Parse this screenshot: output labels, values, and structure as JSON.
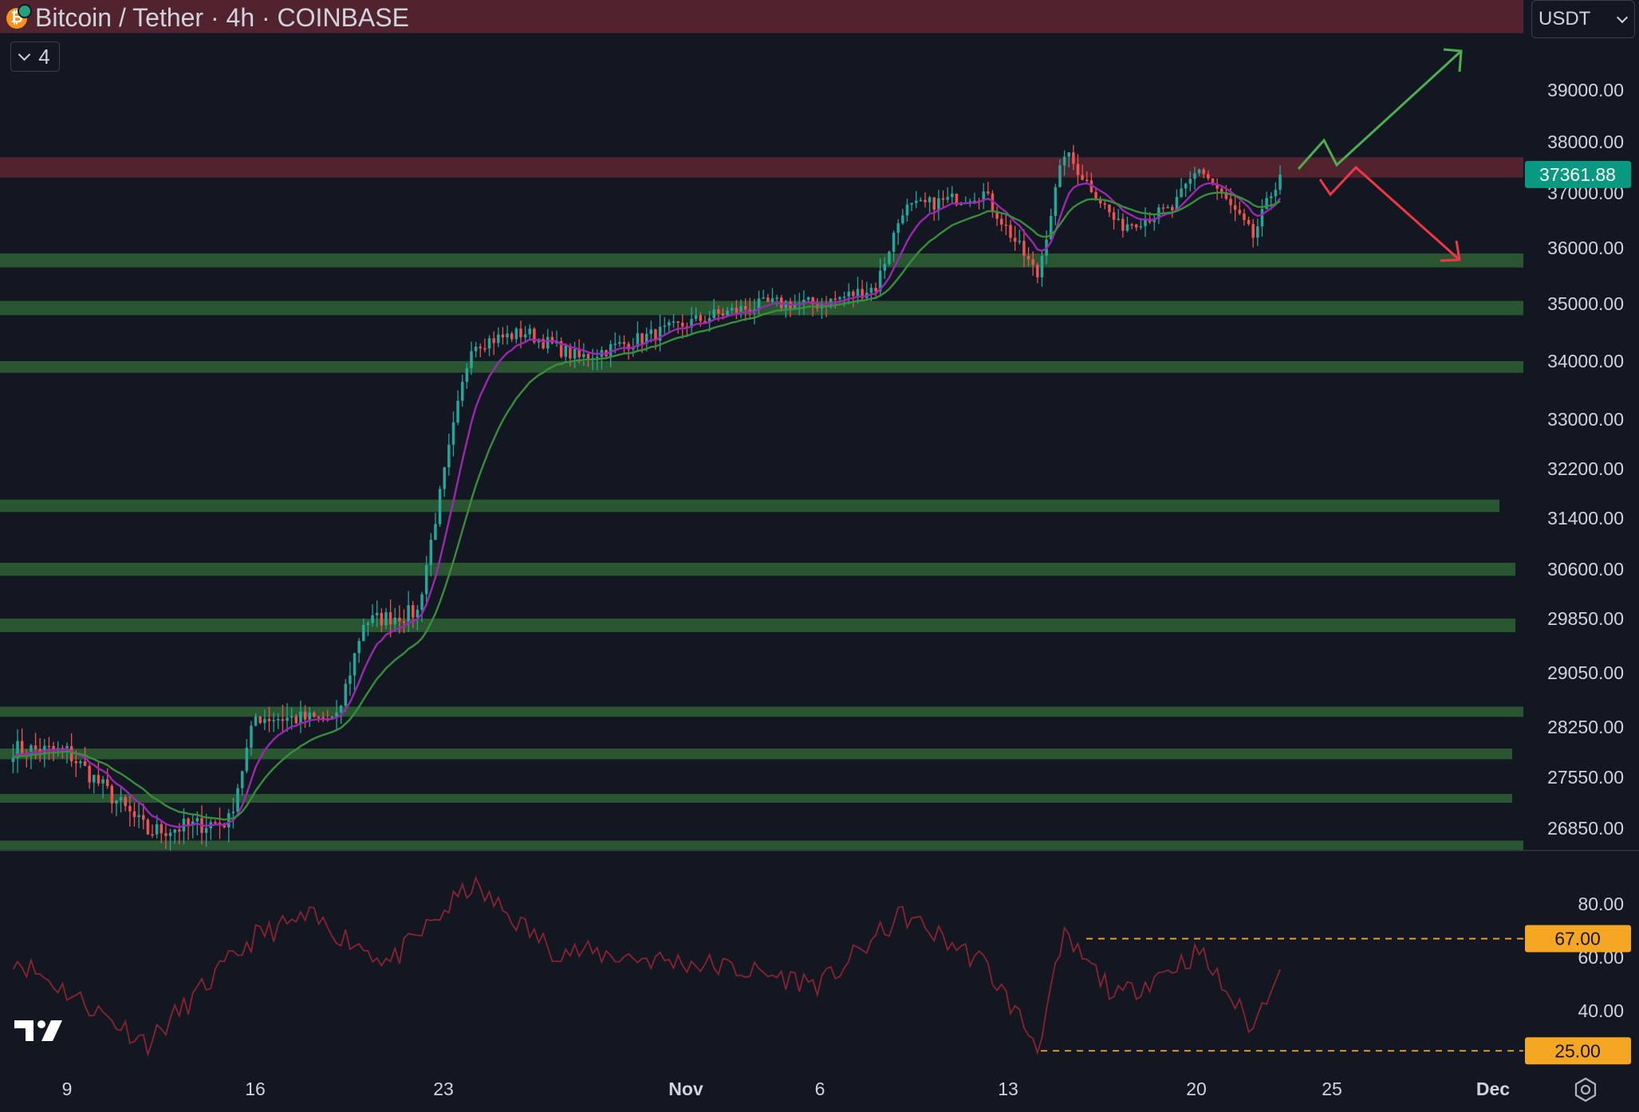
{
  "header": {
    "symbol_title": "Bitcoin / Tether · 4h · COINBASE",
    "collapse_count": "4",
    "currency": "USDT"
  },
  "icons": {
    "coin": "bitcoin-icon",
    "collapse": "chevron-down-icon",
    "currency_dropdown": "chevron-down-icon",
    "logo": "tradingview-logo-icon",
    "settings": "gear-icon"
  },
  "colors": {
    "background": "#131722",
    "up_candle": "#26a69a",
    "down_candle": "#ef5350",
    "ema_fast": "#9c27b0",
    "ema_slow": "#388e3c",
    "support_zone": "#2e5c33",
    "resistance_zone": "#5c2631",
    "rsi_line": "#8b2230",
    "rsi_level": "#f5a623",
    "price_label": "#089981",
    "arrow_up": "#4caf50",
    "arrow_down": "#f23645"
  },
  "chart_data": {
    "type": "candlestick",
    "interval": "4h",
    "price_scale_labels": [
      39000,
      38000,
      37000,
      36000,
      35000,
      34000,
      33000,
      32200,
      31400,
      30600,
      29850,
      29050,
      28250,
      27550,
      26850
    ],
    "price_scale_display": [
      "39000.00",
      "38000.00",
      "37000.00",
      "36000.00",
      "35000.00",
      "34000.00",
      "33000.00",
      "32200.00",
      "31400.00",
      "30600.00",
      "29850.00",
      "29050.00",
      "28250.00",
      "27550.00",
      "26850.00"
    ],
    "last_price": "37361.88",
    "x_labels": [
      "9",
      "16",
      "23",
      "Nov",
      "6",
      "13",
      "20",
      "25",
      "Dec"
    ],
    "price_key_points": [
      {
        "date": "Oct 7",
        "price": 27950
      },
      {
        "date": "Oct 9",
        "price": 27900
      },
      {
        "date": "Oct 12",
        "price": 26800
      },
      {
        "date": "Oct 15",
        "price": 26950
      },
      {
        "date": "Oct 16",
        "price": 28400
      },
      {
        "date": "Oct 19",
        "price": 28350
      },
      {
        "date": "Oct 20",
        "price": 29800
      },
      {
        "date": "Oct 22",
        "price": 29950
      },
      {
        "date": "Oct 24",
        "price": 34300
      },
      {
        "date": "Oct 26",
        "price": 34500
      },
      {
        "date": "Oct 28",
        "price": 34050
      },
      {
        "date": "Nov 2",
        "price": 34800
      },
      {
        "date": "Nov 4",
        "price": 35000
      },
      {
        "date": "Nov 6",
        "price": 35000
      },
      {
        "date": "Nov 8",
        "price": 35300
      },
      {
        "date": "Nov 9",
        "price": 36700
      },
      {
        "date": "Nov 12",
        "price": 37000
      },
      {
        "date": "Nov 14",
        "price": 35500
      },
      {
        "date": "Nov 15",
        "price": 37800
      },
      {
        "date": "Nov 17",
        "price": 36400
      },
      {
        "date": "Nov 19",
        "price": 36700
      },
      {
        "date": "Nov 20",
        "price": 37500
      },
      {
        "date": "Nov 22",
        "price": 36200
      },
      {
        "date": "Nov 23",
        "price": 37361.88
      }
    ],
    "zones": [
      {
        "type": "resistance",
        "low": 40100,
        "high": 40700
      },
      {
        "type": "resistance",
        "low": 37300,
        "high": 37700
      },
      {
        "type": "support",
        "low": 35650,
        "high": 35900
      },
      {
        "type": "support",
        "low": 34800,
        "high": 35050
      },
      {
        "type": "support",
        "low": 33800,
        "high": 34000
      },
      {
        "type": "support",
        "low": 31500,
        "high": 31700
      },
      {
        "type": "support",
        "low": 30500,
        "high": 30700
      },
      {
        "type": "support",
        "low": 29650,
        "high": 29850
      },
      {
        "type": "support",
        "low": 28400,
        "high": 28550
      },
      {
        "type": "support",
        "low": 27800,
        "high": 27950
      },
      {
        "type": "support",
        "low": 27200,
        "high": 27320
      },
      {
        "type": "support",
        "low": 26550,
        "high": 26680
      }
    ],
    "rsi": {
      "scale_labels": [
        "80.00",
        "60.00",
        "40.00"
      ],
      "levels": [
        "67.00",
        "25.00"
      ],
      "key_points": [
        {
          "date": "Oct 7",
          "value": 60
        },
        {
          "date": "Oct 12",
          "value": 28
        },
        {
          "date": "Oct 16",
          "value": 68
        },
        {
          "date": "Oct 18",
          "value": 75
        },
        {
          "date": "Oct 21",
          "value": 58
        },
        {
          "date": "Oct 24",
          "value": 87
        },
        {
          "date": "Oct 27",
          "value": 63
        },
        {
          "date": "Nov 2",
          "value": 57
        },
        {
          "date": "Nov 6",
          "value": 50
        },
        {
          "date": "Nov 9",
          "value": 76
        },
        {
          "date": "Nov 12",
          "value": 58
        },
        {
          "date": "Nov 14",
          "value": 27
        },
        {
          "date": "Nov 15",
          "value": 67
        },
        {
          "date": "Nov 17",
          "value": 45
        },
        {
          "date": "Nov 20",
          "value": 62
        },
        {
          "date": "Nov 22",
          "value": 33
        },
        {
          "date": "Nov 23",
          "value": 59
        }
      ]
    },
    "projection_arrows": [
      "bullish breakout toward 39500",
      "bearish rejection toward 35800"
    ]
  }
}
